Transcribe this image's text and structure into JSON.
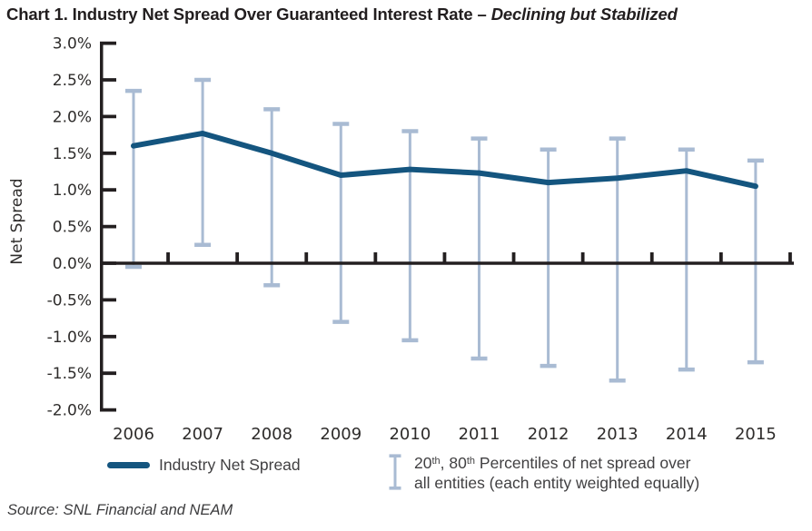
{
  "title": {
    "prefix": "Chart 1. Industry Net Spread Over Guaranteed Interest Rate – ",
    "emphasis": "Declining but Stabilized"
  },
  "source": "Source: SNL Financial and NEAM",
  "legend": {
    "series_label": "Industry Net Spread",
    "percentile": {
      "p1": "20",
      "sup1": "th",
      "p2": ", 80",
      "sup2": "th",
      "p3": " Percentiles of net spread over",
      "line2": "all entities (each entity weighted equally)"
    }
  },
  "colors": {
    "line": "#14557F",
    "error_bar": "#A9BBD3",
    "axis": "#231F20",
    "tick_text": "#2E2C2B",
    "legend_text": "#414042",
    "title_text": "#221E1F"
  },
  "chart_data": {
    "type": "line",
    "title": "Chart 1. Industry Net Spread Over Guaranteed Interest Rate – Declining but Stabilized",
    "xlabel": "",
    "ylabel": "Net Spread",
    "categories": [
      "2006",
      "2007",
      "2008",
      "2009",
      "2010",
      "2011",
      "2012",
      "2013",
      "2014",
      "2015"
    ],
    "series": [
      {
        "name": "Industry Net Spread",
        "values_pct": [
          1.6,
          1.77,
          1.5,
          1.2,
          1.28,
          1.23,
          1.1,
          1.16,
          1.26,
          1.05
        ]
      }
    ],
    "error_bars": {
      "name": "20th, 80th Percentiles of net spread over all entities (each entity weighted equally)",
      "upper_pct": [
        2.35,
        2.5,
        2.1,
        1.9,
        1.8,
        1.7,
        1.55,
        1.7,
        1.55,
        1.4
      ],
      "lower_pct": [
        -0.05,
        0.25,
        -0.3,
        -0.8,
        -1.05,
        -1.3,
        -1.4,
        -1.6,
        -1.45,
        -1.35
      ]
    },
    "ylim": [
      -2.0,
      3.0
    ],
    "y_tick_step": 0.5,
    "y_tick_labels": [
      "3.0%",
      "2.5%",
      "2.0%",
      "1.5%",
      "1.0%",
      "0.5%",
      "0.0%",
      "-0.5%",
      "-1.0%",
      "-1.5%",
      "-2.0%"
    ],
    "grid": false,
    "legend_position": "bottom"
  }
}
